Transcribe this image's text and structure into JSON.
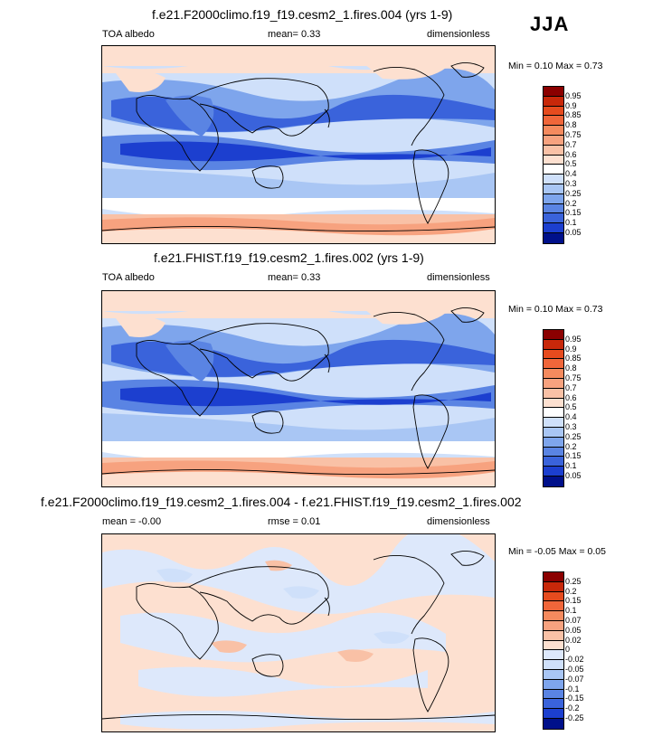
{
  "season": "JJA",
  "panels": [
    {
      "title": "f.e21.F2000climo.f19_f19.cesm2_1.fires.004 (yrs 1-9)",
      "left_label": "TOA albedo",
      "center_label": "mean=   0.33",
      "right_label": "dimensionless",
      "minmax": "Min =   0.10 Max =   0.73"
    },
    {
      "title": "f.e21.FHIST.f19_f19.cesm2_1.fires.002 (yrs 1-9)",
      "left_label": "TOA albedo",
      "center_label": "mean=   0.33",
      "right_label": "dimensionless",
      "minmax": "Min =   0.10 Max =   0.73"
    },
    {
      "title": "f.e21.F2000climo.f19_f19.cesm2_1.fires.004 - f.e21.FHIST.f19_f19.cesm2_1.fires.002",
      "left_label": "mean =  -0.00",
      "center_label": "rmse =   0.01",
      "right_label": "dimensionless",
      "minmax": "Min =  -0.05 Max =   0.05"
    }
  ],
  "colorbar_abs": {
    "labels": [
      "0.95",
      "0.9",
      "0.85",
      "0.8",
      "0.75",
      "0.7",
      "0.6",
      "0.5",
      "0.4",
      "0.3",
      "0.25",
      "0.2",
      "0.15",
      "0.1",
      "0.05"
    ],
    "colors": [
      "#8b0000",
      "#c8280a",
      "#e64b1e",
      "#f0663a",
      "#f58a5e",
      "#f7a27f",
      "#f9c1a6",
      "#fde0d0",
      "#ffffff",
      "#cfe0fa",
      "#a9c6f4",
      "#7ea5ec",
      "#5a84e3",
      "#3a63db",
      "#1c3fcf",
      "#00108a"
    ]
  },
  "colorbar_diff": {
    "labels": [
      "0.25",
      "0.2",
      "0.15",
      "0.1",
      "0.07",
      "0.05",
      "0.02",
      "0",
      "-0.02",
      "-0.05",
      "-0.07",
      "-0.1",
      "-0.15",
      "-0.2",
      "-0.25"
    ],
    "colors": [
      "#8b0000",
      "#c8280a",
      "#e64b1e",
      "#f0663a",
      "#f58a5e",
      "#f7a27f",
      "#f9c1a6",
      "#fde0d0",
      "#dde8fb",
      "#cfe0fa",
      "#a9c6f4",
      "#7ea5ec",
      "#5a84e3",
      "#3a63db",
      "#1c3fcf",
      "#00108a"
    ]
  }
}
